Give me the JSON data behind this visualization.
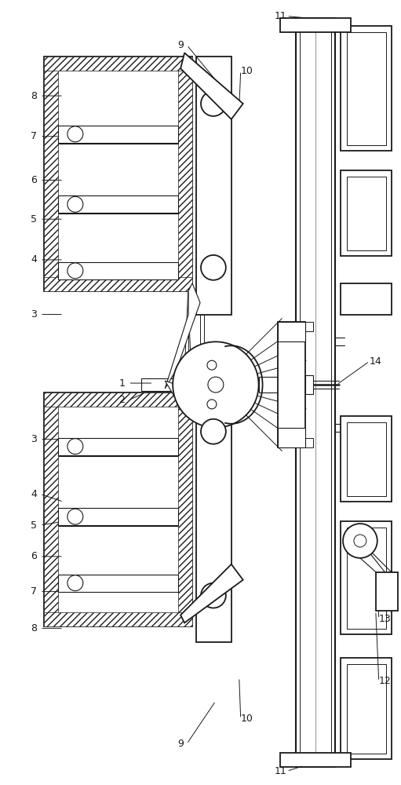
{
  "bg_color": "#ffffff",
  "line_color": "#1a1a1a",
  "lw_main": 1.3,
  "lw_thin": 0.7,
  "lw_thick": 1.8
}
